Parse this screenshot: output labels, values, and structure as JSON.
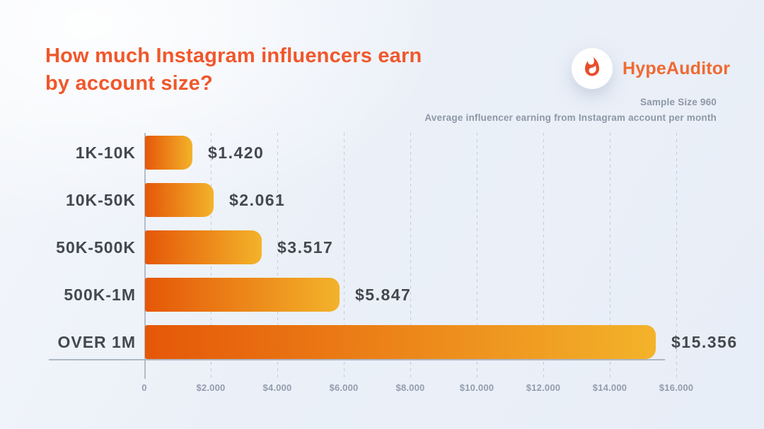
{
  "page": {
    "background": "#EBF0F8"
  },
  "header": {
    "title_lines": [
      "How much Instagram influencers earn",
      "by account size?"
    ],
    "title_color": "#F1572B",
    "brand": {
      "name": "HypeAuditor",
      "name_color": "#EF6A31",
      "flame_icon_color": "#E84E2B",
      "circle_color": "#FFFFFF"
    },
    "sample_size": "Sample Size 960",
    "subtitle": "Average influencer earning from Instagram account per month"
  },
  "chart_data": {
    "type": "bar",
    "orientation": "horizontal",
    "title": "How much Instagram influencers earn by account size?",
    "subtitle": "Average influencer earning from Instagram account per month",
    "sample_size": 960,
    "categories": [
      "1K-10K",
      "10K-50K",
      "50K-500K",
      "500K-1M",
      "OVER 1M"
    ],
    "values": [
      1420,
      2061,
      3517,
      5847,
      15356
    ],
    "value_labels": [
      "$1.420",
      "$2.061",
      "$3.517",
      "$5.847",
      "$15.356"
    ],
    "xlabel": "",
    "ylabel": "",
    "xlim": [
      0,
      16000
    ],
    "x_tick_values": [
      0,
      2000,
      4000,
      6000,
      8000,
      10000,
      12000,
      14000,
      16000
    ],
    "x_tick_labels": [
      "0",
      "$2.000",
      "$4.000",
      "$6.000",
      "$8.000",
      "$10.000",
      "$12.000",
      "$14.000",
      "$16.000"
    ],
    "grid": "vertical-dashed",
    "legend": "none",
    "bar_gradient_start": "#E55708",
    "bar_gradient_end": "#F3B32A",
    "label_color": "#44484F",
    "tick_color": "#939DAD"
  }
}
